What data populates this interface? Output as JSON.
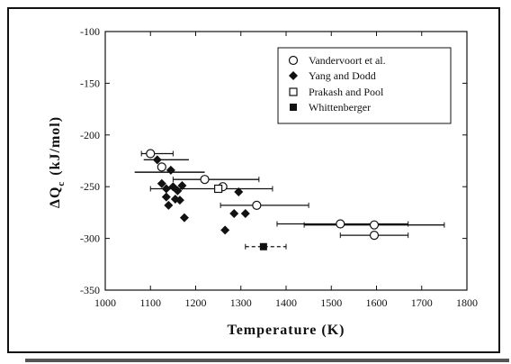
{
  "chart_data": {
    "type": "scatter",
    "xlabel": "Temperature (K)",
    "ylabel": "ΔQ",
    "ylabel_sub": "c",
    "ylabel_unit": "(kJ/mol)",
    "xlim": [
      1000,
      1800
    ],
    "ylim": [
      -350,
      -100
    ],
    "xticks": [
      1000,
      1100,
      1200,
      1300,
      1400,
      1500,
      1600,
      1700,
      1800
    ],
    "yticks": [
      -100,
      -150,
      -200,
      -250,
      -300,
      -350
    ],
    "grid": false,
    "legend_position": "top-right",
    "series": [
      {
        "name": "Vandervoort et al.",
        "marker": "circle-open",
        "points": [
          {
            "x": 1100,
            "y": -218,
            "xerr": [
              1080,
              1150
            ]
          },
          {
            "x": 1125,
            "y": -231
          },
          {
            "x": 1220,
            "y": -243,
            "xerr": [
              1150,
              1340
            ]
          },
          {
            "x": 1260,
            "y": -250
          },
          {
            "x": 1335,
            "y": -268,
            "xerr": [
              1255,
              1450
            ]
          },
          {
            "x": 1520,
            "y": -286,
            "xerr": [
              1380,
              1670
            ]
          },
          {
            "x": 1595,
            "y": -287,
            "xerr": [
              1440,
              1750
            ]
          },
          {
            "x": 1595,
            "y": -297,
            "xerr": [
              1520,
              1670
            ]
          }
        ]
      },
      {
        "name": "Yang and Dodd",
        "marker": "diamond-filled",
        "points": [
          {
            "x": 1115,
            "y": -224
          },
          {
            "x": 1125,
            "y": -247
          },
          {
            "x": 1135,
            "y": -252
          },
          {
            "x": 1145,
            "y": -234
          },
          {
            "x": 1150,
            "y": -250
          },
          {
            "x": 1160,
            "y": -254
          },
          {
            "x": 1170,
            "y": -249
          },
          {
            "x": 1135,
            "y": -260
          },
          {
            "x": 1140,
            "y": -268
          },
          {
            "x": 1155,
            "y": -262
          },
          {
            "x": 1165,
            "y": -263
          },
          {
            "x": 1175,
            "y": -280
          },
          {
            "x": 1265,
            "y": -292
          },
          {
            "x": 1285,
            "y": -276
          },
          {
            "x": 1310,
            "y": -276
          },
          {
            "x": 1295,
            "y": -255
          }
        ]
      },
      {
        "name": "Prakash and Pool",
        "marker": "square-open",
        "points": [
          {
            "x": 1250,
            "y": -252,
            "xerr": [
              1100,
              1370
            ]
          }
        ]
      },
      {
        "name": "Whittenberger",
        "marker": "square-filled",
        "points": [
          {
            "x": 1350,
            "y": -308,
            "xerr": [
              1310,
              1400
            ]
          }
        ]
      }
    ],
    "trend_lines": [
      {
        "x": [
          1065,
          1220
        ],
        "y": [
          -236,
          -236
        ]
      },
      {
        "x": [
          1085,
          1185
        ],
        "y": [
          -224,
          -224
        ]
      }
    ]
  },
  "colors": {
    "ink": "#111111",
    "background": "#ffffff"
  }
}
